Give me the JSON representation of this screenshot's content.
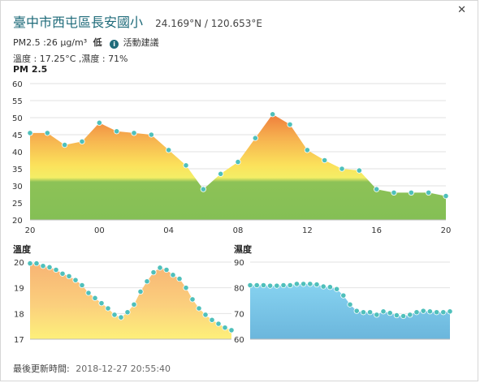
{
  "header": {
    "station": "臺中市西屯區長安國小",
    "coords": "24.169°N / 120.653°E",
    "pm_text": "PM2.5 :26 μg/m³",
    "pm_level": "低",
    "activity": "活動建議",
    "temp_humidity": "溫度 : 17.25°C ,濕度 : 71%"
  },
  "footer": {
    "label": "最後更新時間:",
    "timestamp": "2018-12-27 20:55:40"
  },
  "colors": {
    "station": "#1f6b7a",
    "point": "#4fc0bb",
    "green": "#88c057",
    "humid": "#7dc9e8"
  },
  "chart_data": [
    {
      "type": "area",
      "title": "PM 2.5",
      "x_ticks": [
        "20",
        "00",
        "04",
        "08",
        "12",
        "16",
        "20"
      ],
      "y_ticks": [
        20,
        25,
        30,
        35,
        40,
        45,
        50,
        55,
        60
      ],
      "ylim": [
        20,
        60
      ],
      "x": [
        20,
        21,
        22,
        23,
        24,
        25,
        26,
        27,
        28,
        29,
        30,
        31,
        32,
        33,
        34,
        35,
        36,
        37,
        38,
        39,
        40,
        41,
        42,
        43,
        44
      ],
      "values": [
        45.5,
        45.5,
        42,
        43,
        48.5,
        46,
        45.5,
        45,
        40.5,
        36,
        29,
        33.5,
        37,
        44,
        51,
        48,
        40.5,
        37.5,
        35,
        34.5,
        29,
        28,
        28,
        28,
        27
      ],
      "xlim": [
        20,
        44
      ]
    },
    {
      "type": "area",
      "title": "溫度",
      "y_ticks": [
        17,
        18,
        19,
        20
      ],
      "ylim": [
        17,
        20
      ],
      "values": [
        19.95,
        19.95,
        19.85,
        19.8,
        19.7,
        19.55,
        19.45,
        19.3,
        19.1,
        18.8,
        18.6,
        18.4,
        18.2,
        17.95,
        17.85,
        18.05,
        18.35,
        18.85,
        19.25,
        19.6,
        19.78,
        19.7,
        19.5,
        19.35,
        19.0,
        18.55,
        18.2,
        17.95,
        17.75,
        17.6,
        17.45,
        17.35
      ],
      "xlabel": "",
      "ylabel": ""
    },
    {
      "type": "area",
      "title": "濕度",
      "y_ticks": [
        60,
        70,
        80,
        90
      ],
      "ylim": [
        60,
        90
      ],
      "values": [
        81,
        81,
        81,
        80.8,
        80.8,
        81,
        81,
        81.5,
        81.5,
        81.5,
        81.3,
        80.5,
        80.3,
        79.5,
        77,
        73.5,
        71,
        70.5,
        70.5,
        69.5,
        70.8,
        70.2,
        69.3,
        69,
        69.5,
        70.5,
        71,
        70.8,
        70.5,
        70.5,
        70.8
      ],
      "xlabel": "",
      "ylabel": ""
    }
  ]
}
